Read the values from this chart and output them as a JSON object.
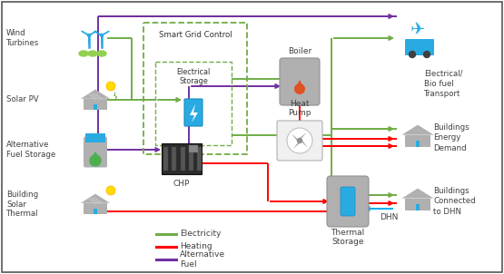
{
  "bg_color": "#ffffff",
  "border_color": "#555555",
  "icon_gray": "#b0b0b0",
  "icon_blue": "#29abe2",
  "electricity_color": "#70ad47",
  "heating_color": "#ff0000",
  "alt_fuel_color": "#7030a0",
  "dhn_color": "#00b0f0",
  "green_dashed": "#70ad47",
  "labels": {
    "wind_turbines": "Wind\nTurbines",
    "solar_pv": "Solar PV",
    "alt_fuel": "Alternative\nFuel Storage",
    "building_solar": "Building\nSolar\nThermal",
    "smart_grid": "Smart Grid Control",
    "elec_storage": "Electrical\nStorage",
    "boiler": "Boiler",
    "heat_pump": "Heat\nPump",
    "chp": "CHP",
    "thermal_storage": "Thermal\nStorage",
    "dhn": "DHN",
    "elec_bio_transport": "Electrical/\nBio fuel\nTransport",
    "buildings_energy": "Buildings\nEnergy\nDemand",
    "buildings_dhn": "Buildings\nConnected\nto DHN",
    "legend_electricity": "Electricity",
    "legend_heating": "Heating",
    "legend_alt_fuel": "Alternative\nFuel"
  }
}
